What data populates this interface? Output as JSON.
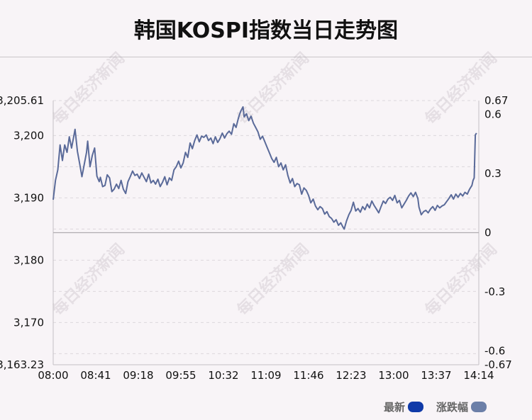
{
  "chart_data": {
    "type": "line",
    "title": "韩国KOSPI指数当日走势图",
    "x_ticks": [
      "08:00",
      "08:41",
      "09:18",
      "09:55",
      "10:32",
      "11:09",
      "11:46",
      "12:23",
      "13:00",
      "13:37",
      "14:14"
    ],
    "y_left_ticks": [
      "3,205.61",
      "3,200",
      "3,190",
      "3,180",
      "3,170",
      "3,163.23"
    ],
    "y_left_tick_values": [
      3205.61,
      3200,
      3190,
      3180,
      3170,
      3163.23
    ],
    "y_right_ticks": [
      "0.67",
      "0.6",
      "0.3",
      "0",
      "-0.3",
      "-0.6",
      "-0.67"
    ],
    "y_right_tick_values": [
      0.67,
      0.6,
      0.3,
      0,
      -0.3,
      -0.6,
      -0.67
    ],
    "y_left_range": [
      3163.23,
      3205.61
    ],
    "y_right_range": [
      -0.67,
      0.67
    ],
    "baseline_value": 3184.42,
    "x_range_minutes": [
      0,
      370
    ],
    "series": [
      {
        "name": "最新",
        "color": "#5a6a99",
        "points": [
          [
            0,
            3189.7
          ],
          [
            2,
            3192.8
          ],
          [
            4,
            3194.5
          ],
          [
            6,
            3198.5
          ],
          [
            8,
            3196.0
          ],
          [
            10,
            3198.5
          ],
          [
            12,
            3197.3
          ],
          [
            14,
            3199.8
          ],
          [
            16,
            3198.0
          ],
          [
            18,
            3200.0
          ],
          [
            19,
            3201.0
          ],
          [
            21,
            3197.5
          ],
          [
            23,
            3195.5
          ],
          [
            25,
            3193.4
          ],
          [
            27,
            3195.4
          ],
          [
            29,
            3197.3
          ],
          [
            30,
            3199.1
          ],
          [
            32,
            3195.0
          ],
          [
            34,
            3196.8
          ],
          [
            36,
            3198.0
          ],
          [
            38,
            3193.5
          ],
          [
            40,
            3192.6
          ],
          [
            41,
            3193.3
          ],
          [
            43,
            3191.8
          ],
          [
            45,
            3192.0
          ],
          [
            47,
            3193.7
          ],
          [
            49,
            3193.2
          ],
          [
            51,
            3191.0
          ],
          [
            53,
            3191.4
          ],
          [
            55,
            3192.2
          ],
          [
            57,
            3191.5
          ],
          [
            59,
            3192.8
          ],
          [
            61,
            3191.4
          ],
          [
            63,
            3190.7
          ],
          [
            65,
            3192.6
          ],
          [
            67,
            3193.4
          ],
          [
            69,
            3194.3
          ],
          [
            71,
            3193.6
          ],
          [
            73,
            3193.8
          ],
          [
            75,
            3193.1
          ],
          [
            77,
            3194.0
          ],
          [
            79,
            3193.3
          ],
          [
            81,
            3192.6
          ],
          [
            83,
            3193.8
          ],
          [
            85,
            3192.4
          ],
          [
            87,
            3192.8
          ],
          [
            89,
            3192.2
          ],
          [
            91,
            3193.0
          ],
          [
            93,
            3191.8
          ],
          [
            95,
            3192.5
          ],
          [
            97,
            3193.4
          ],
          [
            99,
            3192.1
          ],
          [
            101,
            3193.2
          ],
          [
            103,
            3192.8
          ],
          [
            105,
            3194.5
          ],
          [
            107,
            3195.0
          ],
          [
            109,
            3195.9
          ],
          [
            111,
            3194.8
          ],
          [
            113,
            3195.6
          ],
          [
            115,
            3197.3
          ],
          [
            117,
            3196.5
          ],
          [
            119,
            3198.8
          ],
          [
            121,
            3197.9
          ],
          [
            123,
            3199.2
          ],
          [
            125,
            3200.1
          ],
          [
            127,
            3199.0
          ],
          [
            129,
            3199.9
          ],
          [
            131,
            3199.7
          ],
          [
            133,
            3200.1
          ],
          [
            135,
            3199.2
          ],
          [
            137,
            3199.6
          ],
          [
            139,
            3198.7
          ],
          [
            141,
            3199.8
          ],
          [
            143,
            3198.9
          ],
          [
            145,
            3199.5
          ],
          [
            147,
            3200.4
          ],
          [
            149,
            3199.6
          ],
          [
            151,
            3200.3
          ],
          [
            153,
            3200.7
          ],
          [
            155,
            3200.2
          ],
          [
            157,
            3201.9
          ],
          [
            159,
            3201.3
          ],
          [
            161,
            3202.8
          ],
          [
            163,
            3203.9
          ],
          [
            165,
            3204.6
          ],
          [
            166,
            3203.0
          ],
          [
            168,
            3203.5
          ],
          [
            170,
            3202.4
          ],
          [
            172,
            3203.1
          ],
          [
            174,
            3202.0
          ],
          [
            176,
            3201.3
          ],
          [
            178,
            3200.6
          ],
          [
            180,
            3199.4
          ],
          [
            182,
            3199.9
          ],
          [
            184,
            3199.0
          ],
          [
            186,
            3198.1
          ],
          [
            188,
            3197.2
          ],
          [
            190,
            3196.3
          ],
          [
            192,
            3195.7
          ],
          [
            194,
            3196.5
          ],
          [
            196,
            3195.0
          ],
          [
            198,
            3195.6
          ],
          [
            200,
            3194.5
          ],
          [
            202,
            3195.3
          ],
          [
            204,
            3193.6
          ],
          [
            206,
            3192.4
          ],
          [
            208,
            3193.1
          ],
          [
            210,
            3191.8
          ],
          [
            212,
            3192.3
          ],
          [
            214,
            3192.1
          ],
          [
            216,
            3190.6
          ],
          [
            218,
            3191.6
          ],
          [
            220,
            3191.2
          ],
          [
            222,
            3190.4
          ],
          [
            224,
            3189.2
          ],
          [
            226,
            3189.8
          ],
          [
            228,
            3188.7
          ],
          [
            230,
            3188.1
          ],
          [
            232,
            3188.6
          ],
          [
            234,
            3188.3
          ],
          [
            236,
            3187.4
          ],
          [
            238,
            3187.8
          ],
          [
            240,
            3187.0
          ],
          [
            242,
            3186.7
          ],
          [
            244,
            3186.1
          ],
          [
            246,
            3186.5
          ],
          [
            248,
            3185.6
          ],
          [
            250,
            3186.0
          ],
          [
            252,
            3185.3
          ],
          [
            253,
            3185.0
          ],
          [
            255,
            3186.3
          ],
          [
            257,
            3187.3
          ],
          [
            259,
            3188.0
          ],
          [
            261,
            3189.3
          ],
          [
            263,
            3187.9
          ],
          [
            265,
            3188.3
          ],
          [
            267,
            3187.7
          ],
          [
            269,
            3188.6
          ],
          [
            271,
            3188.1
          ],
          [
            273,
            3189.0
          ],
          [
            275,
            3188.4
          ],
          [
            277,
            3189.5
          ],
          [
            279,
            3188.8
          ],
          [
            281,
            3188.2
          ],
          [
            283,
            3187.6
          ],
          [
            285,
            3188.6
          ],
          [
            287,
            3189.5
          ],
          [
            289,
            3189.1
          ],
          [
            291,
            3189.8
          ],
          [
            293,
            3190.1
          ],
          [
            295,
            3189.6
          ],
          [
            297,
            3190.4
          ],
          [
            299,
            3189.2
          ],
          [
            301,
            3189.6
          ],
          [
            303,
            3188.4
          ],
          [
            305,
            3189.0
          ],
          [
            307,
            3189.6
          ],
          [
            309,
            3190.3
          ],
          [
            311,
            3190.8
          ],
          [
            313,
            3190.2
          ],
          [
            315,
            3190.9
          ],
          [
            317,
            3189.9
          ],
          [
            318,
            3188.5
          ],
          [
            320,
            3187.3
          ],
          [
            322,
            3187.8
          ],
          [
            324,
            3188.0
          ],
          [
            326,
            3187.6
          ],
          [
            328,
            3188.2
          ],
          [
            330,
            3188.6
          ],
          [
            332,
            3188.0
          ],
          [
            334,
            3188.8
          ],
          [
            336,
            3188.4
          ],
          [
            338,
            3188.7
          ],
          [
            340,
            3188.9
          ],
          [
            342,
            3189.4
          ],
          [
            344,
            3189.9
          ],
          [
            346,
            3190.5
          ],
          [
            348,
            3189.8
          ],
          [
            350,
            3190.6
          ],
          [
            352,
            3190.1
          ],
          [
            354,
            3190.7
          ],
          [
            356,
            3190.3
          ],
          [
            358,
            3190.9
          ],
          [
            360,
            3190.6
          ],
          [
            362,
            3191.4
          ],
          [
            364,
            3192.0
          ],
          [
            365,
            3192.8
          ],
          [
            366,
            3193.2
          ],
          [
            367,
            3200.1
          ],
          [
            368,
            3200.4
          ]
        ]
      },
      {
        "name": "涨跌幅",
        "color": "#6c7fa8"
      }
    ]
  },
  "legend": {
    "items": [
      {
        "label": "最新",
        "color": "#0f3aa8"
      },
      {
        "label": "涨跌幅",
        "color": "#6c7fa8"
      }
    ]
  },
  "watermark": "每日经济新闻"
}
